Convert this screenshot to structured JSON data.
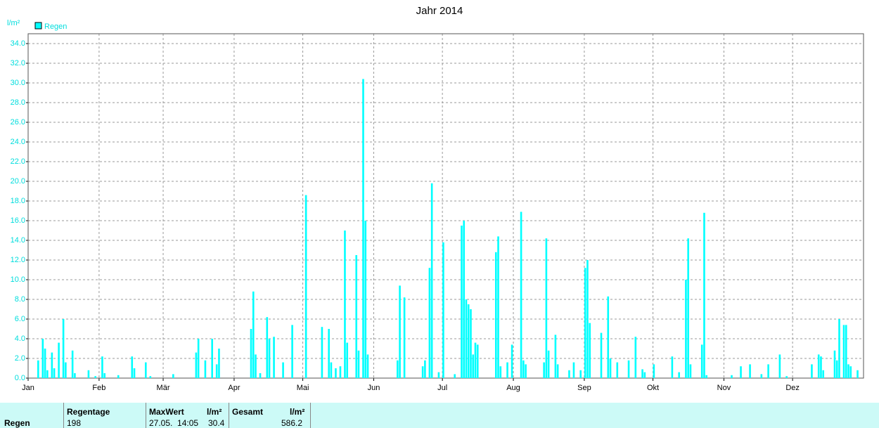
{
  "chart_data": {
    "type": "bar",
    "title": "Jahr 2014",
    "y_label": "l/m²",
    "legend_position": "top-left",
    "grid": true,
    "series": [
      {
        "name": "Regen",
        "color": "#00ffff",
        "values": [
          0,
          0,
          0,
          0,
          1.8,
          0,
          4.0,
          3.0,
          0.8,
          0,
          2.6,
          1.0,
          0,
          3.6,
          0,
          6.0,
          1.6,
          0,
          0,
          2.8,
          0.5,
          0,
          0,
          0,
          0,
          0,
          0.8,
          0,
          0,
          0.2,
          0,
          0,
          2.2,
          0.5,
          0,
          0,
          0,
          0,
          0,
          0.3,
          0,
          0,
          0,
          0,
          0,
          2.2,
          1.0,
          0,
          0,
          0,
          0,
          1.6,
          0,
          0.2,
          0,
          0,
          0,
          0,
          0,
          0,
          0,
          0,
          0,
          0.4,
          0,
          0,
          0,
          0,
          0,
          0,
          0,
          0,
          0,
          2.6,
          4.0,
          0,
          0,
          1.8,
          0,
          0,
          4.0,
          0,
          1.4,
          3.0,
          0,
          0,
          0,
          0,
          0,
          0,
          0,
          0,
          0,
          0,
          0,
          0,
          0,
          5.0,
          8.8,
          2.4,
          0,
          0.5,
          0,
          0,
          6.2,
          4.0,
          0,
          4.2,
          0,
          0,
          0,
          1.6,
          0,
          0,
          0,
          5.4,
          0,
          0,
          0,
          0,
          0,
          18.6,
          0,
          0,
          0,
          0,
          0,
          0,
          5.2,
          0,
          0,
          5.0,
          1.6,
          0,
          1.0,
          0,
          1.2,
          0,
          15.0,
          3.6,
          0,
          0,
          0,
          12.5,
          2.8,
          0,
          30.4,
          16.0,
          2.4,
          0,
          0,
          0,
          0,
          0,
          0,
          0,
          0,
          0,
          0,
          0,
          0,
          1.8,
          9.4,
          0,
          8.2,
          0,
          0,
          0,
          0,
          0,
          0,
          0,
          1.2,
          1.8,
          0,
          11.2,
          19.8,
          0,
          0,
          0.6,
          0,
          13.8,
          0,
          0,
          0,
          0,
          0.4,
          0,
          0,
          15.5,
          16.0,
          8.0,
          7.5,
          7.0,
          2.4,
          3.6,
          3.4,
          0,
          0,
          0,
          0,
          0,
          0,
          0,
          12.8,
          14.4,
          1.2,
          0,
          0,
          1.6,
          0,
          3.4,
          0,
          0,
          0,
          16.9,
          1.8,
          1.4,
          0,
          0,
          0,
          0,
          0,
          0,
          0,
          1.6,
          14.2,
          2.8,
          0,
          0,
          4.4,
          1.4,
          0,
          0,
          0,
          0,
          0.8,
          0,
          1.6,
          0,
          0,
          0.8,
          0,
          11.2,
          12.0,
          5.6,
          0,
          0,
          0,
          0,
          4.6,
          0,
          0,
          8.3,
          2.0,
          0,
          0,
          1.6,
          0,
          0,
          0,
          0,
          1.8,
          0,
          0,
          4.2,
          0,
          0,
          0.9,
          0.6,
          0,
          0,
          0,
          1.4,
          0,
          0,
          0,
          0,
          0,
          0,
          0,
          2.2,
          0,
          0,
          0.6,
          0,
          0,
          10.0,
          14.2,
          1.4,
          0,
          0,
          0,
          0,
          3.4,
          16.8,
          0.3,
          0,
          0,
          0,
          0,
          0,
          0,
          0,
          0,
          0,
          0,
          0.3,
          0,
          0,
          0,
          1.2,
          0,
          0,
          0,
          1.4,
          0,
          0,
          0,
          0,
          0.4,
          0,
          0,
          1.4,
          0,
          0,
          0,
          0,
          2.4,
          0,
          0,
          0.2,
          0,
          0,
          0,
          0,
          0,
          0,
          0,
          0,
          0,
          0,
          1.4,
          0,
          0,
          2.4,
          2.2,
          0.8,
          0,
          0,
          0,
          0,
          2.8,
          1.8,
          6.0,
          0,
          5.4,
          5.4,
          1.4,
          1.2,
          0,
          0,
          0.8,
          0,
          0
        ]
      }
    ],
    "xlim": [
      0,
      365
    ],
    "xticks": [
      {
        "value": 0,
        "label": "Jan"
      },
      {
        "value": 31,
        "label": "Feb"
      },
      {
        "value": 59,
        "label": "Mär"
      },
      {
        "value": 90,
        "label": "Apr"
      },
      {
        "value": 120,
        "label": "Mai"
      },
      {
        "value": 151,
        "label": "Jun"
      },
      {
        "value": 181,
        "label": "Jul"
      },
      {
        "value": 212,
        "label": "Aug"
      },
      {
        "value": 243,
        "label": "Sep"
      },
      {
        "value": 273,
        "label": "Okt"
      },
      {
        "value": 304,
        "label": "Nov"
      },
      {
        "value": 334,
        "label": "Dez"
      }
    ],
    "ylim": [
      0,
      35
    ],
    "yticks": [
      {
        "value": 0,
        "label": "0.0"
      },
      {
        "value": 2,
        "label": "2.0"
      },
      {
        "value": 4,
        "label": "4.0"
      },
      {
        "value": 6,
        "label": "6.0"
      },
      {
        "value": 8,
        "label": "8.0"
      },
      {
        "value": 10,
        "label": "10.0"
      },
      {
        "value": 12,
        "label": "12.0"
      },
      {
        "value": 14,
        "label": "14.0"
      },
      {
        "value": 16,
        "label": "16.0"
      },
      {
        "value": 18,
        "label": "18.0"
      },
      {
        "value": 20,
        "label": "20.0"
      },
      {
        "value": 22,
        "label": "22.0"
      },
      {
        "value": 24,
        "label": "24.0"
      },
      {
        "value": 26,
        "label": "26.0"
      },
      {
        "value": 28,
        "label": "28.0"
      },
      {
        "value": 30,
        "label": "30.0"
      },
      {
        "value": 32,
        "label": "32.0"
      },
      {
        "value": 34,
        "label": "34.0"
      }
    ]
  },
  "table": {
    "row_label": "Regen",
    "regentage_header": "Regentage",
    "regentage": "198",
    "maxwert_header": "MaxWert",
    "maxwert_unit": "l/m²",
    "maxwert_date": "27.05.  14:05",
    "maxwert": "30.4",
    "gesamt_header": "Gesamt",
    "gesamt_unit": "l/m²",
    "gesamt": "586.2"
  }
}
